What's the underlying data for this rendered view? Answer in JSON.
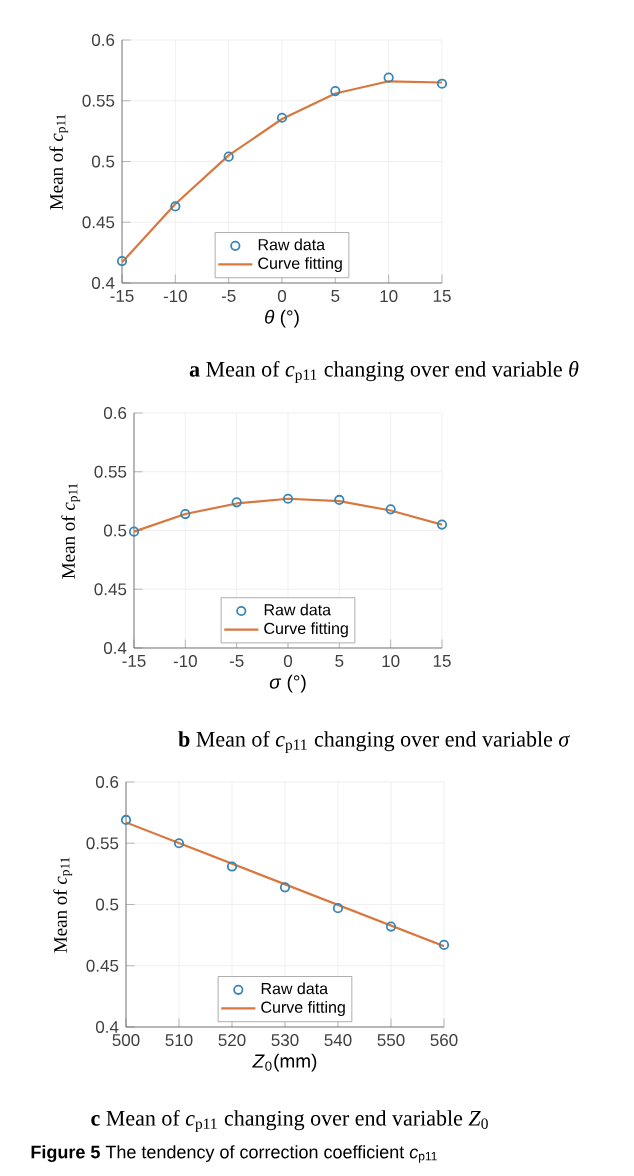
{
  "chart_data": [
    {
      "type": "line",
      "xlabel": "*θ* (°)",
      "ylabel": "Mean of *c*$_{p11}$",
      "xlim": [
        -15,
        15
      ],
      "ylim": [
        0.4,
        0.6
      ],
      "xticks": [
        -15,
        -10,
        -5,
        0,
        5,
        10,
        15
      ],
      "yticks": [
        0.4,
        0.45,
        0.5,
        0.55,
        0.6
      ],
      "grid": true,
      "legend": "bottom",
      "x": [
        -15,
        -10,
        -5,
        0,
        5,
        10,
        15
      ],
      "series": [
        {
          "name": "Raw data",
          "type": "scatter",
          "marker": "circle",
          "color": "#3a86b4",
          "values": [
            0.418,
            0.463,
            0.504,
            0.536,
            0.558,
            0.569,
            0.564
          ]
        },
        {
          "name": "Curve fitting",
          "type": "line",
          "marker": "none",
          "color": "#d9773e",
          "values": [
            0.417,
            0.465,
            0.505,
            0.535,
            0.556,
            0.566,
            0.565
          ]
        }
      ],
      "annotations": [
        "**a** Mean of *c*$_{p11}$ changing over end variable *θ*"
      ]
    },
    {
      "type": "line",
      "xlabel": "*σ* (°)",
      "ylabel": "Mean of *c*$_{p11}$",
      "xlim": [
        -15,
        15
      ],
      "ylim": [
        0.4,
        0.6
      ],
      "xticks": [
        -15,
        -10,
        -5,
        0,
        5,
        10,
        15
      ],
      "yticks": [
        0.4,
        0.45,
        0.5,
        0.55,
        0.6
      ],
      "grid": true,
      "legend": "bottom",
      "x": [
        -15,
        -10,
        -5,
        0,
        5,
        10,
        15
      ],
      "series": [
        {
          "name": "Raw data",
          "type": "scatter",
          "marker": "circle",
          "color": "#3a86b4",
          "values": [
            0.499,
            0.514,
            0.524,
            0.527,
            0.526,
            0.518,
            0.505
          ]
        },
        {
          "name": "Curve fitting",
          "type": "line",
          "marker": "none",
          "color": "#d9773e",
          "values": [
            0.499,
            0.514,
            0.523,
            0.527,
            0.525,
            0.517,
            0.505
          ]
        }
      ],
      "annotations": [
        "**b** Mean of *c*$_{p11}$ changing over end variable *σ*"
      ]
    },
    {
      "type": "line",
      "xlabel": "*Z*$_{0}$(mm)",
      "ylabel": "Mean of *c*$_{p11}$",
      "xlim": [
        500,
        560
      ],
      "ylim": [
        0.4,
        0.6
      ],
      "xticks": [
        500,
        510,
        520,
        530,
        540,
        550,
        560
      ],
      "yticks": [
        0.4,
        0.45,
        0.5,
        0.55,
        0.6
      ],
      "grid": true,
      "legend": "bottom",
      "x": [
        500,
        510,
        520,
        530,
        540,
        550,
        560
      ],
      "series": [
        {
          "name": "Raw data",
          "type": "scatter",
          "marker": "circle",
          "color": "#3a86b4",
          "values": [
            0.569,
            0.55,
            0.531,
            0.514,
            0.497,
            0.482,
            0.467
          ]
        },
        {
          "name": "Curve fitting",
          "type": "line",
          "marker": "none",
          "color": "#d9773e",
          "x": [
            500,
            560
          ],
          "values": [
            0.567,
            0.466
          ]
        }
      ],
      "annotations": [
        "**c** Mean of *c*$_{p11}$ changing over end variable *Z*$_{0}$",
        "**Figure 5** The tendency of correction coefficient *c*$_{p11}$"
      ]
    }
  ]
}
